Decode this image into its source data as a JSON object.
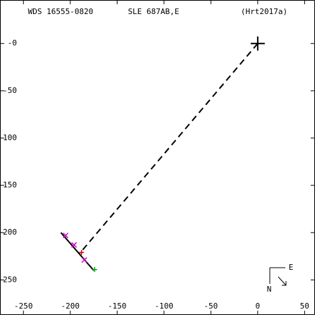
{
  "chart_data": {
    "type": "scatter",
    "title": "WDS 16555-0820",
    "subtitle": "SLE 687AB,E",
    "reference": "(Hrt2017a)",
    "compass": {
      "east": "E",
      "north": "N"
    },
    "xlim": [
      -275,
      61
    ],
    "ylim": [
      -287,
      46
    ],
    "xticks": [
      -250,
      -200,
      -150,
      -100,
      -50,
      0,
      50
    ],
    "yticks": [
      {
        "value": 0,
        "label": "-0"
      },
      -50,
      -100,
      -150,
      -200,
      -250
    ],
    "series": [
      {
        "style": "line",
        "color": "#000000",
        "x": [
          -210,
          -175
        ],
        "values": [
          -200,
          -240
        ]
      },
      {
        "style": "dashed",
        "color": "#000000",
        "x": [
          0,
          -190
        ],
        "values": [
          0,
          -222
        ]
      },
      {
        "style": "x",
        "color": "#cc00cc",
        "x": [
          -205,
          -196,
          -185
        ],
        "values": [
          -203,
          -213,
          -229
        ]
      },
      {
        "style": "+",
        "color": "#dd0000",
        "x": [
          -188
        ],
        "values": [
          -221
        ]
      },
      {
        "style": "+",
        "color": "#00aa00",
        "x": [
          -174
        ],
        "values": [
          -239
        ]
      },
      {
        "style": "big+",
        "color": "#000000",
        "x": [
          0
        ],
        "values": [
          0
        ]
      }
    ]
  }
}
